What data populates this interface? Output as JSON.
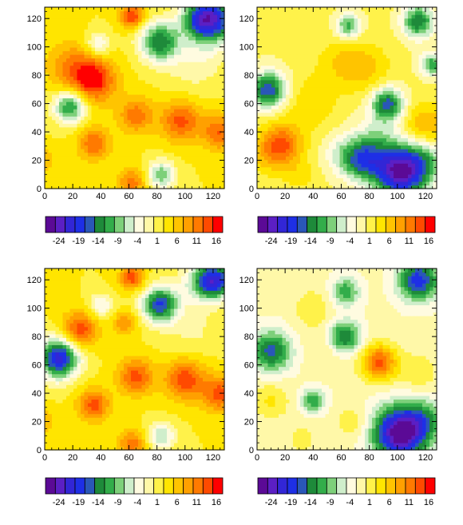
{
  "palette": [
    "#5b0a96",
    "#5b1fc4",
    "#3226d6",
    "#1e2fe6",
    "#2a57b8",
    "#1e8a3a",
    "#32ad4a",
    "#7dd07a",
    "#cfeecb",
    "#fffbe0",
    "#fff8a8",
    "#fff24a",
    "#ffe500",
    "#ffc400",
    "#ffa000",
    "#ff7a00",
    "#ff4a00",
    "#ff0000"
  ],
  "chart_data": [
    {
      "type": "heatmap",
      "xlim": [
        0,
        128
      ],
      "ylim": [
        0,
        128
      ],
      "xticks": [
        "0",
        "20",
        "40",
        "60",
        "80",
        "100",
        "120"
      ],
      "yticks": [
        "0",
        "20",
        "40",
        "60",
        "80",
        "100",
        "120"
      ],
      "zlevels": [
        -24,
        -19,
        -14,
        -9,
        -4,
        1,
        6,
        11,
        16
      ],
      "base": 3.5,
      "blobs": [
        {
          "x": 35,
          "y": 77,
          "a": 14,
          "s": 11
        },
        {
          "x": 18,
          "y": 87,
          "a": 7,
          "s": 12
        },
        {
          "x": 62,
          "y": 122,
          "a": 13,
          "s": 6
        },
        {
          "x": 97,
          "y": 48,
          "a": 11,
          "s": 10
        },
        {
          "x": 125,
          "y": 40,
          "a": 10,
          "s": 9
        },
        {
          "x": 65,
          "y": 52,
          "a": 9,
          "s": 9
        },
        {
          "x": 35,
          "y": 32,
          "a": 10,
          "s": 8
        },
        {
          "x": 62,
          "y": 5,
          "a": 9,
          "s": 7
        },
        {
          "x": -2,
          "y": 20,
          "a": 5,
          "s": 7
        },
        {
          "x": 105,
          "y": 85,
          "a": -3,
          "s": 14
        },
        {
          "x": 115,
          "y": 100,
          "a": -3,
          "s": 12
        },
        {
          "x": 18,
          "y": 58,
          "a": -16,
          "s": 8
        },
        {
          "x": 38,
          "y": 102,
          "a": -8,
          "s": 6
        },
        {
          "x": 83,
          "y": 10,
          "a": -12,
          "s": 7
        },
        {
          "x": 82,
          "y": 104,
          "a": -17,
          "s": 10
        },
        {
          "x": 120,
          "y": 120,
          "a": -22,
          "s": 11
        },
        {
          "x": 108,
          "y": 120,
          "a": -10,
          "s": 9
        }
      ]
    },
    {
      "type": "heatmap",
      "xlim": [
        0,
        128
      ],
      "ylim": [
        0,
        128
      ],
      "xticks": [
        "0",
        "20",
        "40",
        "60",
        "80",
        "100",
        "120"
      ],
      "yticks": [
        "0",
        "20",
        "40",
        "60",
        "80",
        "100",
        "120"
      ],
      "zlevels": [
        -24,
        -19,
        -14,
        -9,
        -4,
        1,
        6,
        11,
        16
      ],
      "base": 1.5,
      "blobs": [
        {
          "x": 18,
          "y": 32,
          "a": 11,
          "s": 10
        },
        {
          "x": 8,
          "y": 25,
          "a": 5,
          "s": 10
        },
        {
          "x": 38,
          "y": 60,
          "a": 4,
          "s": 14
        },
        {
          "x": 60,
          "y": 90,
          "a": 4,
          "s": 12
        },
        {
          "x": 78,
          "y": 85,
          "a": 5,
          "s": 12
        },
        {
          "x": 120,
          "y": 45,
          "a": 7,
          "s": 11
        },
        {
          "x": 30,
          "y": 10,
          "a": 3,
          "s": 9
        },
        {
          "x": 8,
          "y": 70,
          "a": -18,
          "s": 9
        },
        {
          "x": 65,
          "y": 115,
          "a": -12,
          "s": 6
        },
        {
          "x": 115,
          "y": 118,
          "a": -15,
          "s": 8
        },
        {
          "x": 125,
          "y": 88,
          "a": -12,
          "s": 6
        },
        {
          "x": 93,
          "y": 60,
          "a": -17,
          "s": 8
        },
        {
          "x": 75,
          "y": 20,
          "a": -14,
          "s": 10
        },
        {
          "x": 102,
          "y": 12,
          "a": -26,
          "s": 13
        },
        {
          "x": 120,
          "y": 20,
          "a": -8,
          "s": 10
        },
        {
          "x": 85,
          "y": 35,
          "a": -6,
          "s": 12
        },
        {
          "x": 60,
          "y": 25,
          "a": -5,
          "s": 10
        }
      ]
    },
    {
      "type": "heatmap",
      "xlim": [
        0,
        128
      ],
      "ylim": [
        0,
        128
      ],
      "xticks": [
        "0",
        "20",
        "40",
        "60",
        "80",
        "100",
        "120"
      ],
      "yticks": [
        "0",
        "20",
        "40",
        "60",
        "80",
        "100",
        "120"
      ],
      "zlevels": [
        -24,
        -19,
        -14,
        -9,
        -4,
        1,
        6,
        11,
        16
      ],
      "base": 3.5,
      "blobs": [
        {
          "x": 25,
          "y": 85,
          "a": 12,
          "s": 9
        },
        {
          "x": 62,
          "y": 122,
          "a": 12,
          "s": 6
        },
        {
          "x": 57,
          "y": 90,
          "a": 7,
          "s": 6
        },
        {
          "x": 65,
          "y": 52,
          "a": 11,
          "s": 9
        },
        {
          "x": 100,
          "y": 50,
          "a": 12,
          "s": 10
        },
        {
          "x": 125,
          "y": 40,
          "a": 11,
          "s": 9
        },
        {
          "x": 35,
          "y": 32,
          "a": 11,
          "s": 8
        },
        {
          "x": 62,
          "y": 5,
          "a": 9,
          "s": 7
        },
        {
          "x": -2,
          "y": 20,
          "a": 5,
          "s": 7
        },
        {
          "x": 105,
          "y": 85,
          "a": -3,
          "s": 14
        },
        {
          "x": 10,
          "y": 65,
          "a": -24,
          "s": 10
        },
        {
          "x": 40,
          "y": 102,
          "a": -8,
          "s": 6
        },
        {
          "x": 83,
          "y": 10,
          "a": -10,
          "s": 7
        },
        {
          "x": 82,
          "y": 103,
          "a": -20,
          "s": 9
        },
        {
          "x": 122,
          "y": 120,
          "a": -21,
          "s": 9
        },
        {
          "x": 110,
          "y": 118,
          "a": -8,
          "s": 10
        }
      ]
    },
    {
      "type": "heatmap",
      "xlim": [
        0,
        128
      ],
      "ylim": [
        0,
        128
      ],
      "xticks": [
        "0",
        "20",
        "40",
        "60",
        "80",
        "100",
        "120"
      ],
      "yticks": [
        "0",
        "20",
        "40",
        "60",
        "80",
        "100",
        "120"
      ],
      "zlevels": [
        -24,
        -19,
        -14,
        -9,
        -4,
        1,
        6,
        11,
        16
      ],
      "base": -1,
      "blobs": [
        {
          "x": 87,
          "y": 62,
          "a": 15,
          "s": 9
        },
        {
          "x": 10,
          "y": 35,
          "a": 5,
          "s": 9
        },
        {
          "x": 68,
          "y": 20,
          "a": 4,
          "s": 8
        },
        {
          "x": 32,
          "y": 8,
          "a": 3,
          "s": 8
        },
        {
          "x": 40,
          "y": 100,
          "a": 4,
          "s": 10
        },
        {
          "x": 115,
          "y": 55,
          "a": 4,
          "s": 10
        },
        {
          "x": 50,
          "y": 72,
          "a": 3,
          "s": 10
        },
        {
          "x": 10,
          "y": 70,
          "a": -14,
          "s": 10
        },
        {
          "x": 62,
          "y": 80,
          "a": -14,
          "s": 8
        },
        {
          "x": 63,
          "y": 112,
          "a": -10,
          "s": 7
        },
        {
          "x": 40,
          "y": 35,
          "a": -10,
          "s": 6
        },
        {
          "x": 115,
          "y": 120,
          "a": -17,
          "s": 10
        },
        {
          "x": 102,
          "y": 12,
          "a": -26,
          "s": 13
        },
        {
          "x": 120,
          "y": 22,
          "a": -8,
          "s": 10
        }
      ]
    }
  ],
  "colorbar_labels": [
    "-24",
    "-19",
    "-14",
    "-9",
    "-4",
    "1",
    "6",
    "11",
    "16"
  ]
}
